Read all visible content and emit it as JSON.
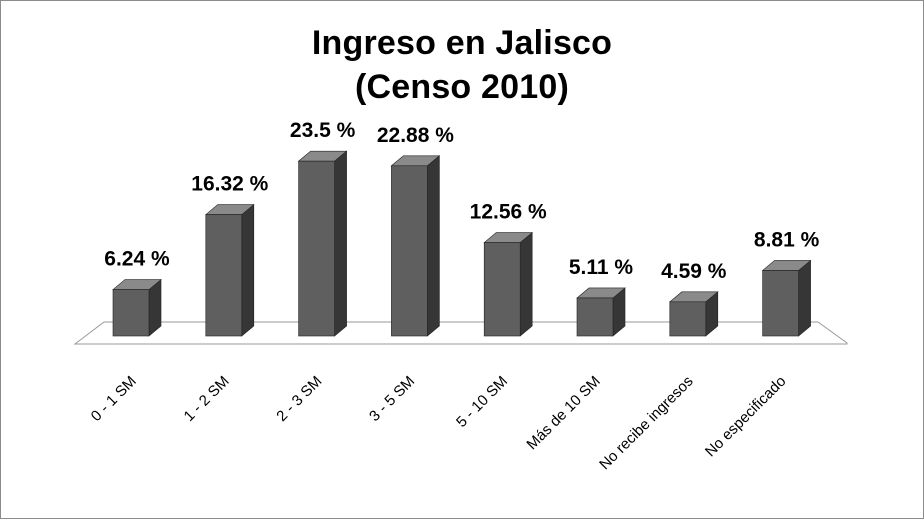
{
  "chart_data": {
    "type": "bar",
    "title": "Ingreso en Jalisco",
    "subtitle": "(Censo 2010)",
    "categories": [
      "0 - 1 SM",
      "1 - 2 SM",
      "2 - 3 SM",
      "3 - 5 SM",
      "5 - 10 SM",
      "Más de 10 SM",
      "No recibe ingresos",
      "No especificado"
    ],
    "values": [
      6.24,
      16.32,
      23.5,
      22.88,
      12.56,
      5.11,
      4.59,
      8.81
    ],
    "data_labels": [
      "6.24 %",
      "16.32 %",
      "23.5 %",
      "22.88 %",
      "12.56 %",
      "5.11 %",
      "4.59 %",
      "8.81 %"
    ],
    "ylim": [
      0,
      25
    ],
    "grid": false,
    "legend": "none",
    "three_d": true,
    "colors": {
      "front": "#5f5f5f",
      "side": "#363636",
      "top": "#8a8a8a",
      "floor_border": "#9a9a9a"
    }
  }
}
